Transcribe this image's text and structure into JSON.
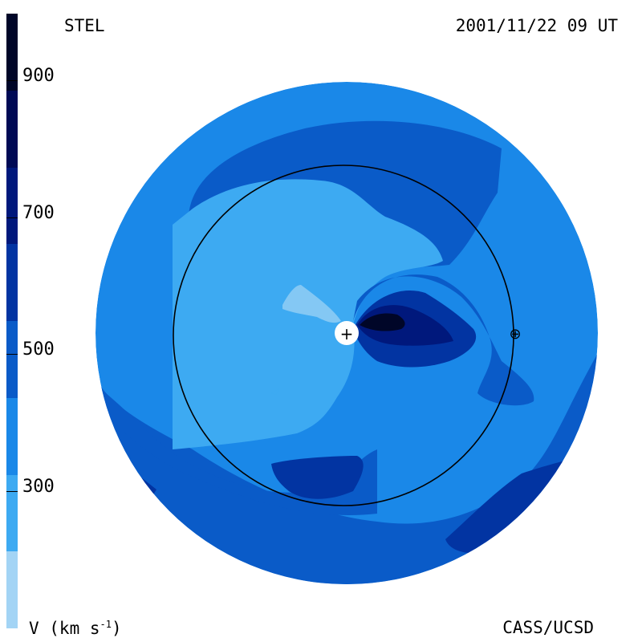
{
  "header": {
    "station": "STEL",
    "timestamp": "2001/11/22 09 UT"
  },
  "footer": {
    "credit": "CASS/UCSD"
  },
  "colorbar": {
    "unit_label": "V (km s",
    "unit_exp": "-1",
    "unit_close": ")",
    "ticks": [
      "900",
      "700",
      "500",
      "300"
    ],
    "scale_min": 200,
    "scale_max": 1000,
    "levels": [
      {
        "from": 200,
        "to": 300,
        "color": "#a3d4f5"
      },
      {
        "from": 300,
        "to": 400,
        "color": "#3daaf2"
      },
      {
        "from": 400,
        "to": 500,
        "color": "#1a88e8"
      },
      {
        "from": 500,
        "to": 600,
        "color": "#0a5bc8"
      },
      {
        "from": 600,
        "to": 700,
        "color": "#0234a2"
      },
      {
        "from": 700,
        "to": 800,
        "color": "#00187c"
      },
      {
        "from": 800,
        "to": 900,
        "color": "#000a55"
      },
      {
        "from": 900,
        "to": 1000,
        "color": "#000628"
      }
    ]
  },
  "map": {
    "sun_symbol": "+",
    "earth_symbol": "⊕"
  }
}
